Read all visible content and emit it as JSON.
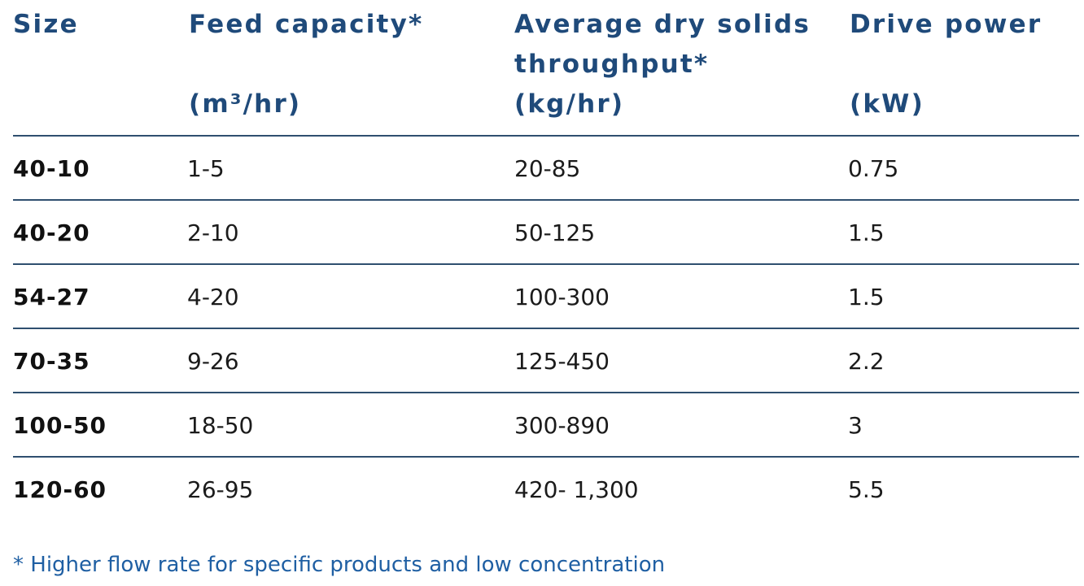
{
  "table": {
    "headers": {
      "size": "Size",
      "feed_line1": "Feed capacity*",
      "feed_unit": "(m³/hr)",
      "dry_line1": "Average dry solids",
      "dry_line2": "throughput*",
      "dry_unit": "(kg/hr)",
      "drive_line1": "Drive power",
      "drive_unit": "(kW)"
    },
    "rows": [
      {
        "size": "40-10",
        "feed": "1-5",
        "dry": "20-85",
        "drive": "0.75"
      },
      {
        "size": "40-20",
        "feed": "2-10",
        "dry": "50-125",
        "drive": "1.5"
      },
      {
        "size": "54-27",
        "feed": "4-20",
        "dry": "100-300",
        "drive": "1.5"
      },
      {
        "size": "70-35",
        "feed": "9-26",
        "dry": "125-450",
        "drive": "2.2"
      },
      {
        "size": "100-50",
        "feed": "18-50",
        "dry": "300-890",
        "drive": "3"
      },
      {
        "size": "120-60",
        "feed": "26-95",
        "dry": "420- 1,300",
        "drive": "5.5"
      }
    ]
  },
  "footnote": "* Higher flow rate for specific products and low concentration",
  "colors": {
    "header_text": "#1f4a7a",
    "rule": "#2f4f6f",
    "body_text": "#1b1b1b",
    "footnote_text": "#1f5fa3"
  }
}
